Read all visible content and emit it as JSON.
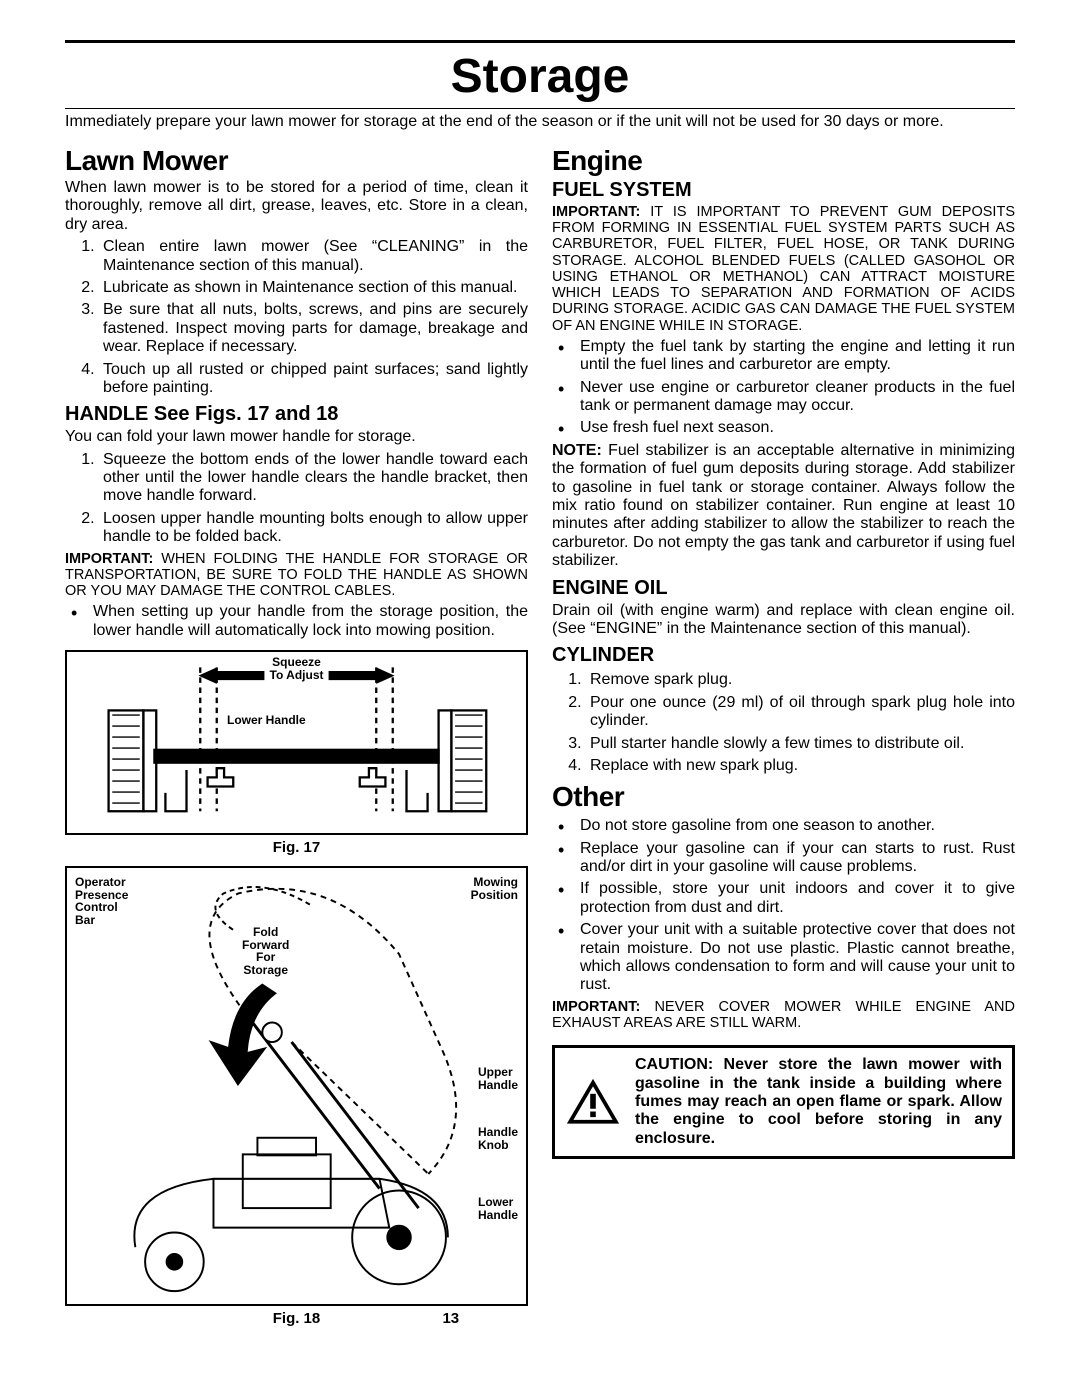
{
  "title": "Storage",
  "intro": "Immediately prepare your lawn mower for storage at the end of the season or if the unit will not be used for 30 days or more.",
  "pageNumber": "13",
  "left": {
    "h_lawnmower": "Lawn Mower",
    "lm_intro": "When lawn mower is to be stored for a period of time, clean it thoroughly, remove all dirt, grease, leaves, etc.  Store in a clean, dry area.",
    "lm_list": [
      "Clean entire lawn mower (See “CLEANING” in the Maintenance section of this manual).",
      "Lubricate as shown in Maintenance section of this manual.",
      "Be sure that all nuts, bolts, screws, and pins are securely fastened.  Inspect   moving parts for damage, breakage and wear.  Replace if necessary.",
      "Touch up all rusted or chipped paint surfaces; sand lightly before painting."
    ],
    "h_handle": "HANDLE See Figs. 17 and 18",
    "handle_intro": "You can fold your lawn mower handle for storage.",
    "handle_list": [
      "Squeeze the bottom ends of the lower handle toward each other until the lower handle clears the handle bracket, then move handle forward.",
      "Loosen upper handle mounting bolts enough to allow upper handle to be folded back."
    ],
    "handle_important": "WHEN FOLDING THE HANDLE FOR STORAGE OR TRANSPORTATION, BE SURE TO FOLD THE HANDLE AS SHOWN OR YOU MAY DAMAGE THE CONTROL CABLES.",
    "handle_bullet": "When setting up your handle from the storage position, the lower handle will automatically lock into mowing position.",
    "fig17_cap": "Fig. 17",
    "fig18_cap": "Fig. 18",
    "fig17": {
      "squeeze": "Squeeze\nTo Adjust",
      "lower": "Lower Handle"
    },
    "fig18": {
      "opc": "Operator\nPresence\nControl\nBar",
      "mow": "Mowing\nPosition",
      "fold": "Fold\nForward\nFor\nStorage",
      "upper": "Upper\nHandle",
      "knob": "Handle\nKnob",
      "lower": "Lower\nHandle"
    }
  },
  "right": {
    "h_engine": "Engine",
    "h_fuel": "FUEL SYSTEM",
    "fuel_important": "IT IS IMPORTANT TO PREVENT GUM DEPOSITS FROM FORMING IN ESSENTIAL FUEL SYSTEM PARTS SUCH AS CARBURETOR, FUEL FILTER, FUEL HOSE, OR TANK DURING STORAGE. ALCOHOL BLENDED FUELS (CALLED GASOHOL OR USING ETHANOL OR METHANOL) CAN ATTRACT MOISTURE WHICH LEADS TO SEPARATION AND FORMATION OF ACIDS DURING STORAGE.  ACIDIC GAS CAN DAMAGE THE FUEL SYSTEM OF AN ENGINE WHILE IN STORAGE.",
    "fuel_list": [
      "Empty the fuel tank by starting the engine and letting it run until the fuel lines and carburetor are empty.",
      "Never use engine or carburetor cleaner products in the fuel tank or permanent damage may occur.",
      "Use fresh fuel next season."
    ],
    "fuel_note": "Fuel stabilizer is an acceptable alternative in minimizing the formation of fuel gum deposits during storage.  Add stabilizer to gasoline in fuel tank or storage container. Always follow the mix ratio found on stabilizer container.  Run engine at least 10 minutes after adding stabilizer to allow the stabilizer to reach the carburetor.  Do not empty the gas tank and carburetor if using fuel stabilizer.",
    "h_oil": "ENGINE OIL",
    "oil_body": "Drain oil (with engine warm) and replace with clean engine oil.  (See “ENGINE” in the Maintenance section of this manual).",
    "h_cyl": "CYLINDER",
    "cyl_list": [
      "Remove spark plug.",
      "Pour one ounce (29 ml) of oil through spark plug hole into cylinder.",
      "Pull starter handle slowly a few times to distribute oil.",
      "Replace with new spark plug."
    ],
    "h_other": "Other",
    "other_list": [
      "Do not store gasoline from one season to another.",
      "Replace your gasoline can if your can starts to rust. Rust and/or dirt in your gasoline will cause problems.",
      "If possible, store your unit indoors and cover it to give protection from dust and dirt.",
      "Cover your unit with a suitable protective cover that does not  retain moisture.  Do not use plastic.  Plastic cannot breathe, which allows condensation to form and will cause your unit to rust."
    ],
    "other_important": "NEVER COVER MOWER WHILE ENGINE  AND EXHAUST AREAS ARE STILL WARM.",
    "caution": "CAUTION:  Never store the lawn mower with gasoline in the tank inside a building where fumes may reach an open flame or spark.  Allow the engine to cool before storing in any enclosure."
  }
}
